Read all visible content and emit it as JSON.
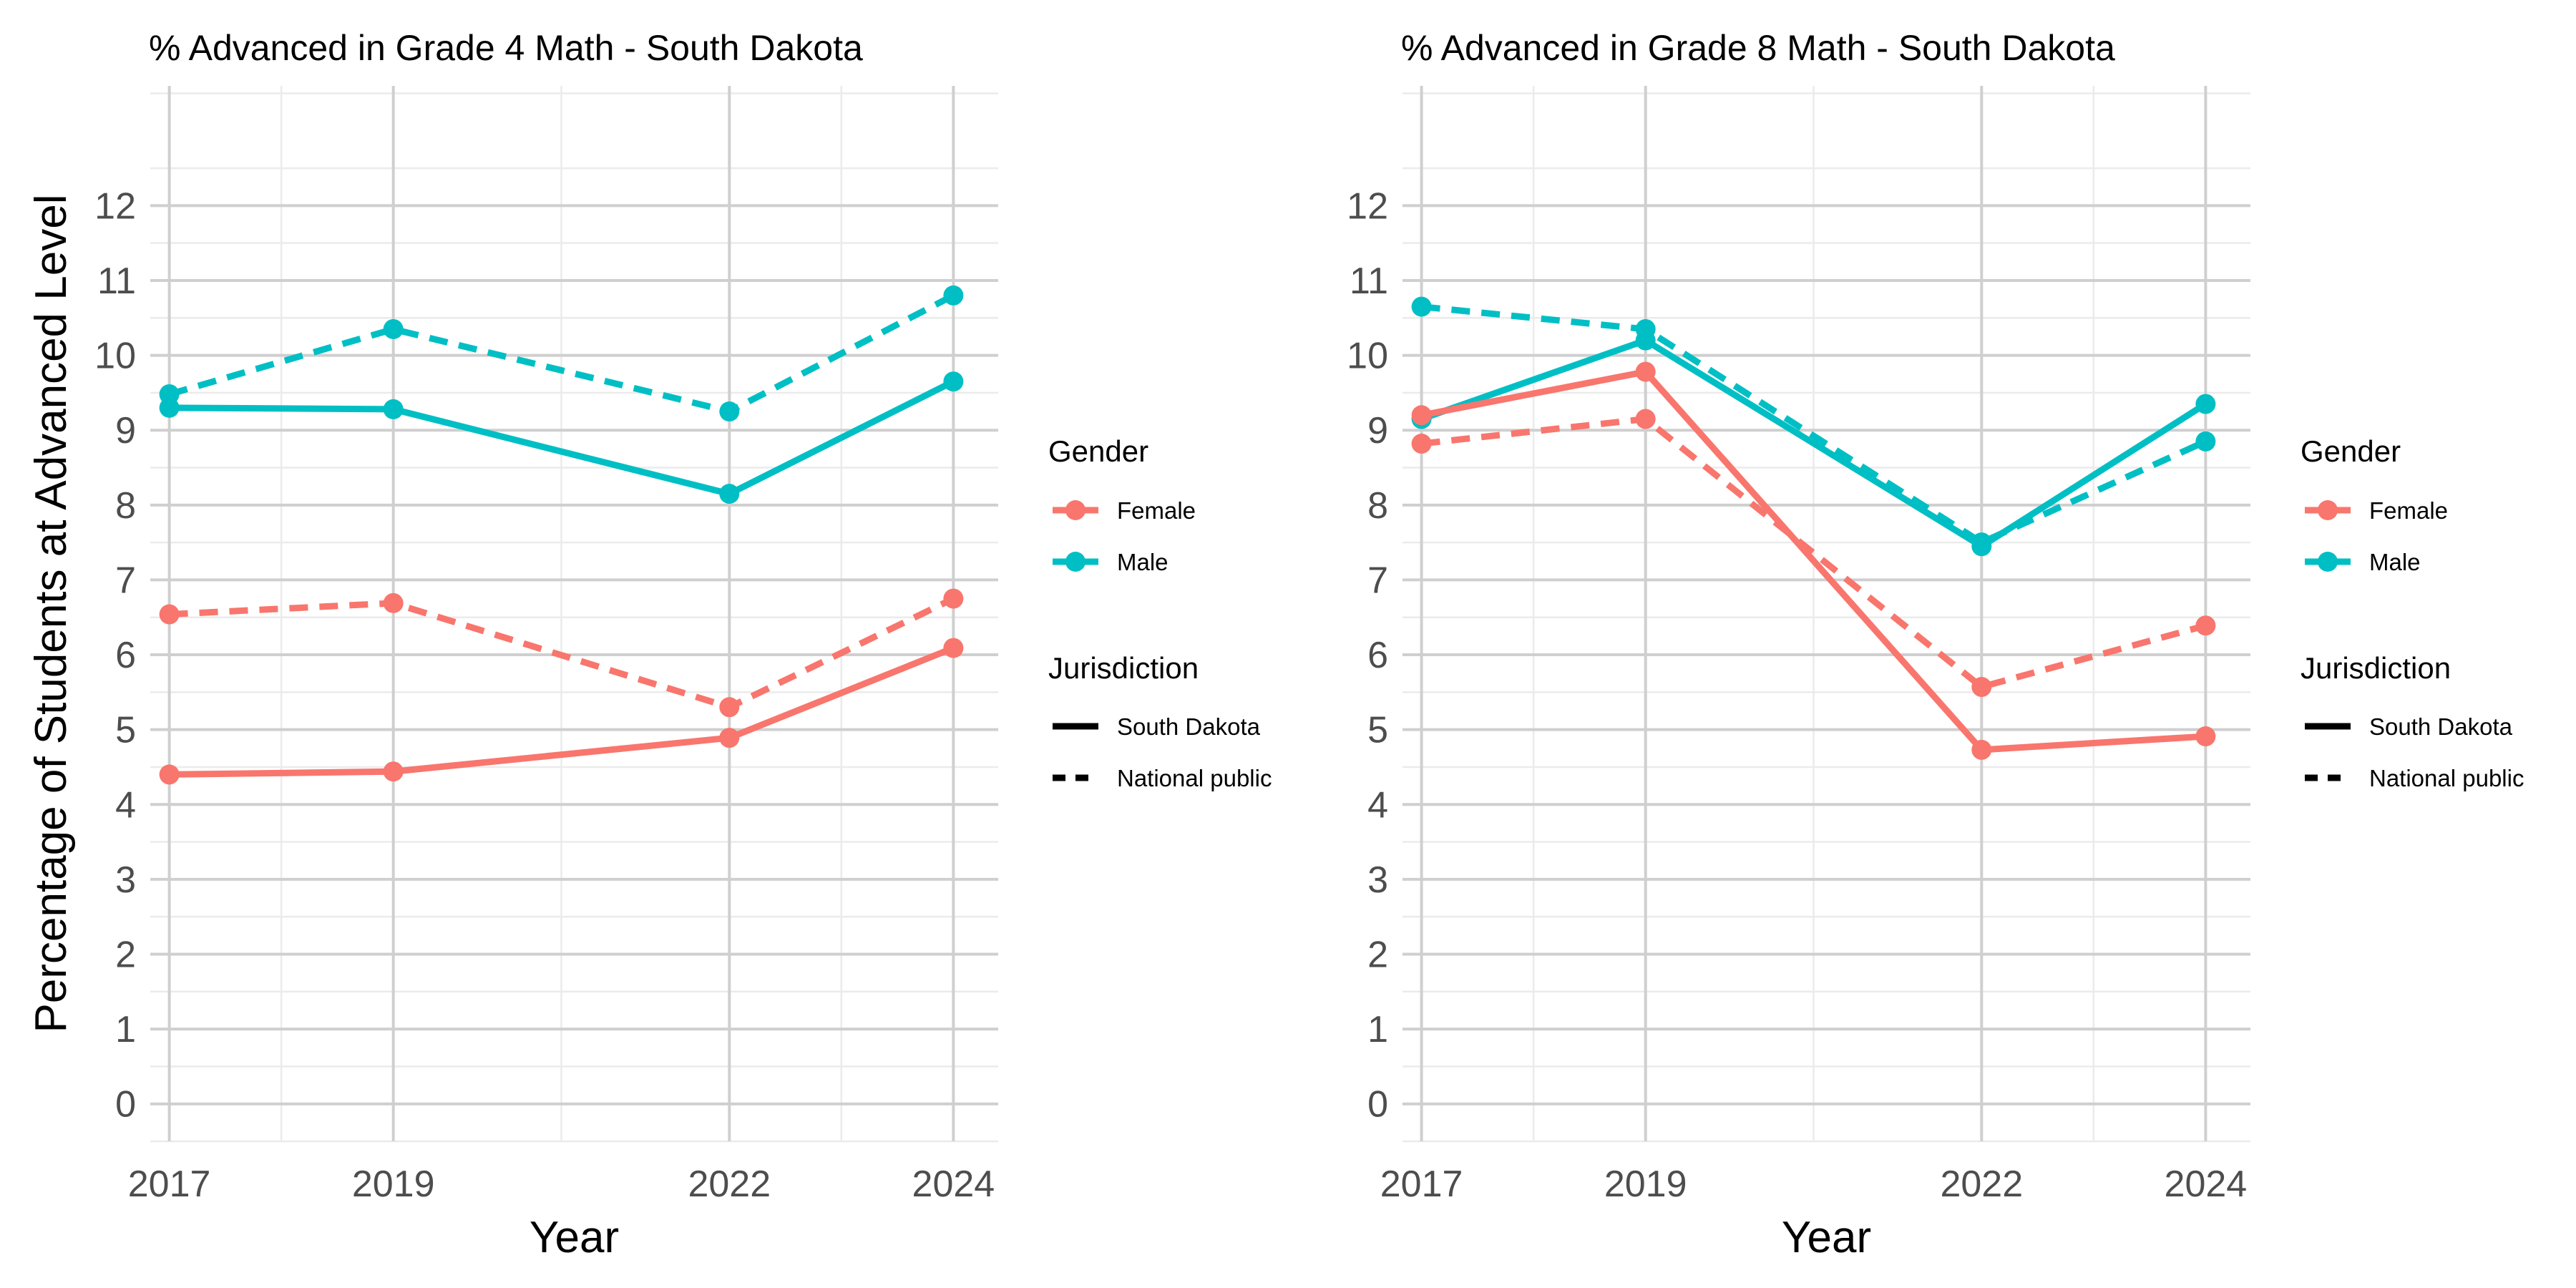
{
  "chart_data": [
    {
      "type": "line",
      "title": "% Advanced in Grade 4 Math - South Dakota",
      "xlabel": "Year",
      "ylabel": "Percentage of Students at Advanced Level",
      "x": [
        2017,
        2019,
        2022,
        2024
      ],
      "x_ticks": [
        "2017",
        "2019",
        "2022",
        "2024"
      ],
      "xlim": [
        2016.83,
        2024.4
      ],
      "ylim": [
        -0.5,
        13.6
      ],
      "y_ticks": [
        "0",
        "1",
        "2",
        "3",
        "4",
        "5",
        "6",
        "7",
        "8",
        "9",
        "10",
        "11",
        "12"
      ],
      "grid": true,
      "series": [
        {
          "name": "Male South Dakota",
          "gender": "Male",
          "jurisdiction": "South Dakota",
          "values": [
            9.3,
            9.28,
            8.15,
            9.65
          ]
        },
        {
          "name": "Male National public",
          "gender": "Male",
          "jurisdiction": "National public",
          "values": [
            9.48,
            10.35,
            9.25,
            10.8
          ]
        },
        {
          "name": "Female South Dakota",
          "gender": "Female",
          "jurisdiction": "South Dakota",
          "values": [
            4.4,
            4.44,
            4.89,
            6.09
          ]
        },
        {
          "name": "Female National public",
          "gender": "Female",
          "jurisdiction": "National public",
          "values": [
            6.54,
            6.69,
            5.3,
            6.75
          ]
        }
      ]
    },
    {
      "type": "line",
      "title": "% Advanced in Grade 8 Math - South Dakota",
      "xlabel": "Year",
      "ylabel": "",
      "x": [
        2017,
        2019,
        2022,
        2024
      ],
      "x_ticks": [
        "2017",
        "2019",
        "2022",
        "2024"
      ],
      "xlim": [
        2016.83,
        2024.4
      ],
      "ylim": [
        -0.5,
        13.6
      ],
      "y_ticks": [
        "0",
        "1",
        "2",
        "3",
        "4",
        "5",
        "6",
        "7",
        "8",
        "9",
        "10",
        "11",
        "12"
      ],
      "grid": true,
      "series": [
        {
          "name": "Male South Dakota",
          "gender": "Male",
          "jurisdiction": "South Dakota",
          "values": [
            9.15,
            10.2,
            7.45,
            9.35
          ]
        },
        {
          "name": "Male National public",
          "gender": "Male",
          "jurisdiction": "National public",
          "values": [
            10.65,
            10.35,
            7.5,
            8.85
          ]
        },
        {
          "name": "Female South Dakota",
          "gender": "Female",
          "jurisdiction": "South Dakota",
          "values": [
            9.2,
            9.78,
            4.73,
            4.91
          ]
        },
        {
          "name": "Female National public",
          "gender": "Female",
          "jurisdiction": "National public",
          "values": [
            8.82,
            9.15,
            5.57,
            6.39
          ]
        }
      ]
    }
  ],
  "legend": {
    "gender_title": "Gender",
    "gender_items": [
      {
        "label": "Female",
        "color": "#F8766D"
      },
      {
        "label": "Male",
        "color": "#00BFC4"
      }
    ],
    "jurisdiction_title": "Jurisdiction",
    "jurisdiction_items": [
      {
        "label": "South Dakota",
        "linetype": "solid"
      },
      {
        "label": "National public",
        "linetype": "dashed"
      }
    ]
  },
  "colors": {
    "Female": "#F8766D",
    "Male": "#00BFC4"
  }
}
